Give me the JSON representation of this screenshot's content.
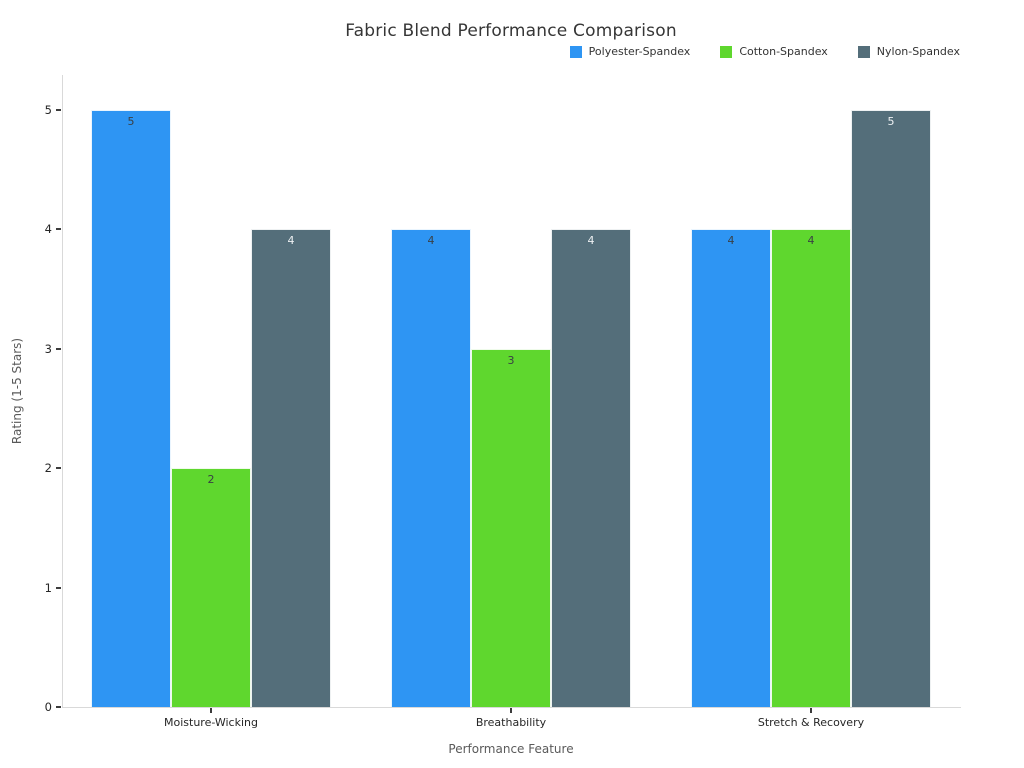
{
  "chart_data": {
    "type": "bar",
    "title": "Fabric Blend Performance Comparison",
    "xlabel": "Performance Feature",
    "ylabel": "Rating (1-5 Stars)",
    "categories": [
      "Moisture-Wicking",
      "Breathability",
      "Stretch & Recovery"
    ],
    "series": [
      {
        "name": "Polyester-Spandex",
        "color": "#2e95f3",
        "label_color": "#3a4045",
        "values": [
          5,
          4,
          4
        ]
      },
      {
        "name": "Cotton-Spandex",
        "color": "#5fd72e",
        "label_color": "#3a4045",
        "values": [
          2,
          3,
          4
        ]
      },
      {
        "name": "Nylon-Spandex",
        "color": "#546e7a",
        "label_color": "#eef1f3",
        "values": [
          4,
          4,
          5
        ]
      }
    ],
    "ylim": [
      0,
      5
    ],
    "yticks": [
      0,
      1,
      2,
      3,
      4,
      5
    ],
    "bar_value_labels": true,
    "legend_position": "top-right",
    "grid": false,
    "axis_color": "#d9d9d9"
  }
}
